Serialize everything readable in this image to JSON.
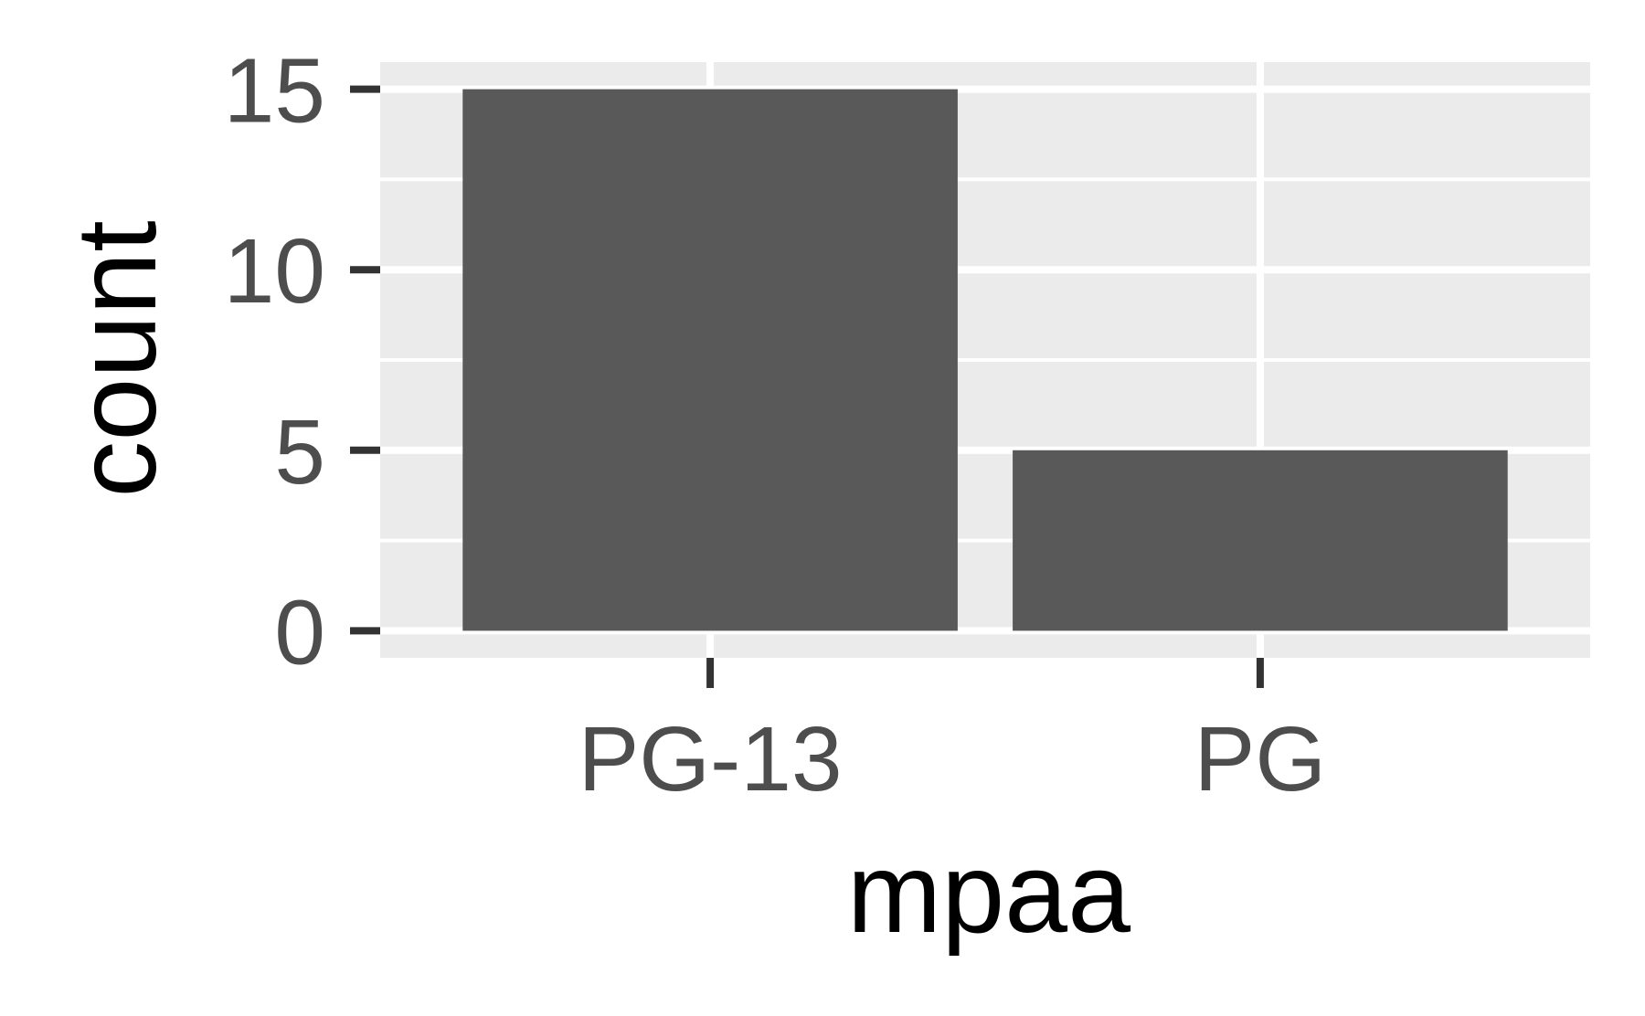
{
  "chart_data": {
    "type": "bar",
    "categories": [
      "PG-13",
      "PG"
    ],
    "values": [
      15,
      5
    ],
    "xlabel": "mpaa",
    "ylabel": "count",
    "ylim": [
      -0.75,
      15.75
    ],
    "yticks": [
      0,
      5,
      10,
      15
    ],
    "grid": true,
    "legend": "none",
    "colors": {
      "bar": "#595959",
      "panel": "#ebebeb",
      "grid": "#ffffff",
      "tick": "#333333",
      "tick_label": "#4d4d4d",
      "axis_title": "#000000"
    }
  }
}
